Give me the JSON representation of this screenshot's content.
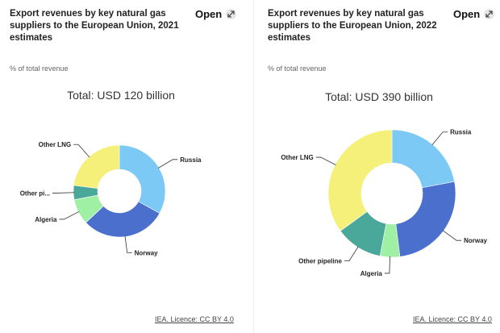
{
  "panels": [
    {
      "title": "Export revenues by key natural gas suppliers to the European Union, 2021 estimates",
      "open_label": "Open",
      "subtitle": "% of total revenue",
      "total_label": "Total: USD 120 billion",
      "credit": "IEA. Licence: CC BY 4.0"
    },
    {
      "title": "Export revenues by key natural gas suppliers to the European Union, 2022 estimates",
      "open_label": "Open",
      "subtitle": "% of total revenue",
      "total_label": "Total: USD 390 billion",
      "credit": "IEA. Licence: CC BY 4.0"
    }
  ],
  "chart_data": [
    {
      "type": "pie",
      "donut": true,
      "title": "Total: USD 120 billion",
      "labels": [
        "Russia",
        "Norway",
        "Algeria",
        "Other pi...",
        "Other LNG"
      ],
      "values": [
        33,
        30,
        9,
        5,
        23
      ],
      "colors": [
        "#7cc9f5",
        "#4a6fcc",
        "#9ff0a4",
        "#4aa89a",
        "#f5f07a"
      ]
    },
    {
      "type": "pie",
      "donut": true,
      "title": "Total: USD 390 billion",
      "labels": [
        "Russia",
        "Norway",
        "Algeria",
        "Other pipeline",
        "Other LNG"
      ],
      "values": [
        22,
        26,
        5,
        12,
        35
      ],
      "colors": [
        "#7cc9f5",
        "#4a6fcc",
        "#9ff0a4",
        "#4aa89a",
        "#f5f07a"
      ]
    }
  ]
}
